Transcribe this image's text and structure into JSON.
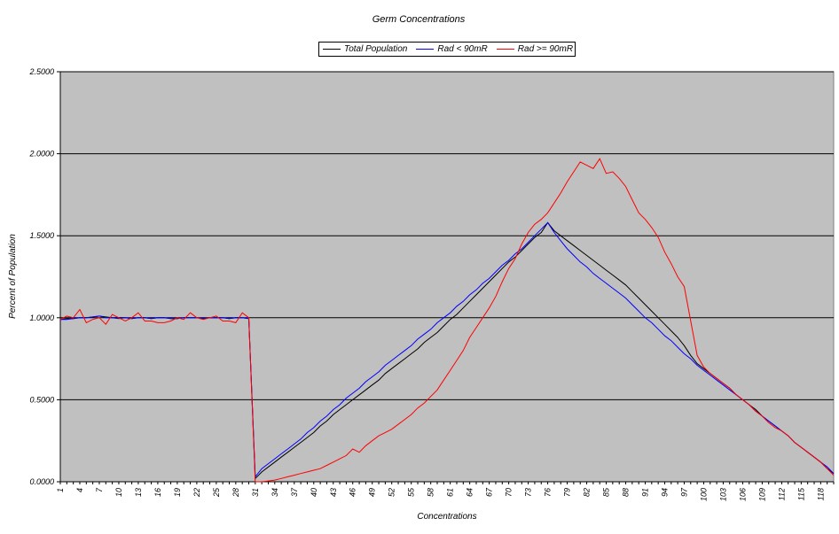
{
  "chart_data": {
    "type": "line",
    "title": "Germ Concentrations",
    "xlabel": "Concentrations",
    "ylabel": "Percent of Population",
    "xlim": [
      1,
      120
    ],
    "ylim": [
      0,
      2.5
    ],
    "y_ticks": [
      "0.0000",
      "0.5000",
      "1.0000",
      "1.5000",
      "2.0000",
      "2.5000"
    ],
    "x_ticks": [
      "1",
      "4",
      "7",
      "10",
      "13",
      "16",
      "19",
      "22",
      "25",
      "28",
      "31",
      "34",
      "37",
      "40",
      "43",
      "46",
      "49",
      "52",
      "55",
      "58",
      "61",
      "64",
      "67",
      "70",
      "73",
      "76",
      "79",
      "82",
      "85",
      "88",
      "91",
      "94",
      "97",
      "100",
      "103",
      "106",
      "109",
      "112",
      "115",
      "118"
    ],
    "legend_position": "top-center",
    "plot_background": "#c0c0c0",
    "grid": "horizontal",
    "x": [
      1,
      2,
      3,
      4,
      5,
      6,
      7,
      8,
      9,
      10,
      11,
      12,
      13,
      14,
      15,
      16,
      17,
      18,
      19,
      20,
      21,
      22,
      23,
      24,
      25,
      26,
      27,
      28,
      29,
      30,
      31,
      32,
      33,
      34,
      35,
      36,
      37,
      38,
      39,
      40,
      41,
      42,
      43,
      44,
      45,
      46,
      47,
      48,
      49,
      50,
      51,
      52,
      53,
      54,
      55,
      56,
      57,
      58,
      59,
      60,
      61,
      62,
      63,
      64,
      65,
      66,
      67,
      68,
      69,
      70,
      71,
      72,
      73,
      74,
      75,
      76,
      77,
      78,
      79,
      80,
      81,
      82,
      83,
      84,
      85,
      86,
      87,
      88,
      89,
      90,
      91,
      92,
      93,
      94,
      95,
      96,
      97,
      98,
      99,
      100,
      101,
      102,
      103,
      104,
      105,
      106,
      107,
      108,
      109,
      110,
      111,
      112,
      113,
      114,
      115,
      116,
      117,
      118,
      119,
      120
    ],
    "series": [
      {
        "name": "Total Population",
        "color": "#000000",
        "values": [
          0.99,
          0.995,
          0.995,
          1.0,
          1.0,
          1.005,
          1.01,
          1.005,
          1.0,
          1.0,
          1.0,
          0.995,
          1.0,
          1.0,
          0.995,
          1.0,
          1.0,
          0.995,
          0.995,
          1.0,
          1.0,
          1.0,
          0.995,
          1.0,
          1.0,
          1.0,
          0.995,
          1.0,
          1.0,
          0.995,
          0.02,
          0.06,
          0.09,
          0.12,
          0.15,
          0.18,
          0.21,
          0.24,
          0.27,
          0.3,
          0.34,
          0.37,
          0.41,
          0.44,
          0.47,
          0.5,
          0.53,
          0.56,
          0.59,
          0.62,
          0.66,
          0.69,
          0.72,
          0.75,
          0.78,
          0.81,
          0.85,
          0.88,
          0.91,
          0.95,
          0.99,
          1.02,
          1.06,
          1.1,
          1.14,
          1.18,
          1.22,
          1.26,
          1.3,
          1.34,
          1.37,
          1.41,
          1.45,
          1.49,
          1.52,
          1.58,
          1.53,
          1.5,
          1.47,
          1.44,
          1.41,
          1.38,
          1.35,
          1.32,
          1.29,
          1.26,
          1.23,
          1.2,
          1.16,
          1.12,
          1.08,
          1.04,
          1.0,
          0.96,
          0.92,
          0.88,
          0.83,
          0.77,
          0.72,
          0.69,
          0.66,
          0.63,
          0.6,
          0.57,
          0.53,
          0.5,
          0.47,
          0.44,
          0.4,
          0.37,
          0.34,
          0.31,
          0.28,
          0.24,
          0.21,
          0.18,
          0.15,
          0.12,
          0.08,
          0.05
        ]
      },
      {
        "name": "Rad < 90mR",
        "color": "#0000ff",
        "values": [
          0.99,
          0.99,
          0.995,
          1.0,
          1.0,
          1.005,
          1.01,
          1.0,
          1.0,
          0.995,
          1.0,
          0.995,
          1.0,
          1.0,
          0.995,
          1.0,
          1.0,
          0.995,
          0.995,
          1.0,
          1.0,
          1.0,
          0.995,
          1.0,
          1.0,
          1.0,
          0.995,
          1.0,
          1.0,
          0.995,
          0.03,
          0.08,
          0.11,
          0.14,
          0.17,
          0.2,
          0.23,
          0.26,
          0.3,
          0.33,
          0.37,
          0.4,
          0.44,
          0.47,
          0.51,
          0.54,
          0.57,
          0.61,
          0.64,
          0.67,
          0.71,
          0.74,
          0.77,
          0.8,
          0.83,
          0.87,
          0.9,
          0.93,
          0.97,
          1.0,
          1.03,
          1.07,
          1.1,
          1.14,
          1.17,
          1.21,
          1.24,
          1.28,
          1.32,
          1.35,
          1.39,
          1.42,
          1.46,
          1.5,
          1.54,
          1.58,
          1.52,
          1.47,
          1.42,
          1.38,
          1.34,
          1.31,
          1.27,
          1.24,
          1.21,
          1.18,
          1.15,
          1.12,
          1.08,
          1.04,
          1.0,
          0.97,
          0.93,
          0.89,
          0.86,
          0.82,
          0.78,
          0.75,
          0.71,
          0.68,
          0.65,
          0.62,
          0.59,
          0.56,
          0.53,
          0.5,
          0.47,
          0.43,
          0.4,
          0.37,
          0.34,
          0.31,
          0.28,
          0.24,
          0.21,
          0.18,
          0.15,
          0.12,
          0.09,
          0.05
        ]
      },
      {
        "name": "Rad >= 90mR",
        "color": "#ff0000",
        "values": [
          0.99,
          1.01,
          1.0,
          1.05,
          0.97,
          0.99,
          1.0,
          0.96,
          1.02,
          1.0,
          0.98,
          1.0,
          1.03,
          0.98,
          0.98,
          0.97,
          0.97,
          0.98,
          1.0,
          0.99,
          1.03,
          1.0,
          0.99,
          1.0,
          1.01,
          0.98,
          0.98,
          0.97,
          1.03,
          1.0,
          0.0,
          0.0,
          0.005,
          0.01,
          0.02,
          0.03,
          0.04,
          0.05,
          0.06,
          0.07,
          0.08,
          0.1,
          0.12,
          0.14,
          0.16,
          0.2,
          0.18,
          0.22,
          0.25,
          0.28,
          0.3,
          0.32,
          0.35,
          0.38,
          0.41,
          0.45,
          0.48,
          0.52,
          0.56,
          0.62,
          0.68,
          0.74,
          0.8,
          0.88,
          0.94,
          1.0,
          1.06,
          1.13,
          1.22,
          1.3,
          1.36,
          1.45,
          1.52,
          1.57,
          1.6,
          1.64,
          1.7,
          1.76,
          1.83,
          1.89,
          1.95,
          1.93,
          1.91,
          1.97,
          1.88,
          1.89,
          1.85,
          1.8,
          1.72,
          1.64,
          1.6,
          1.55,
          1.49,
          1.4,
          1.33,
          1.25,
          1.19,
          0.98,
          0.77,
          0.7,
          0.66,
          0.63,
          0.6,
          0.57,
          0.53,
          0.5,
          0.47,
          0.43,
          0.4,
          0.36,
          0.33,
          0.31,
          0.28,
          0.24,
          0.21,
          0.18,
          0.15,
          0.12,
          0.08,
          0.04
        ]
      }
    ]
  }
}
